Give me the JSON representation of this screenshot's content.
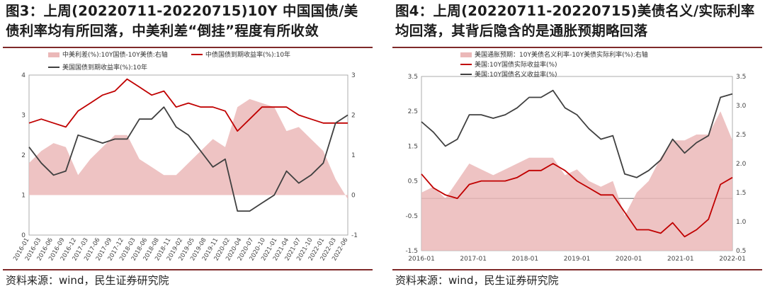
{
  "charts": [
    {
      "title": "图3：上周(20220711-20220715)10Y 中国国债/美债利率均有所回落，中美利差“倒挂”程度有所收敛",
      "source": "资料来源：wind，民生证券研究院"
    },
    {
      "title": "图4：上周(20220711-20220715)美债名义/实际利率均回落，其背后隐含的是通胀预期略回落",
      "source": "资料来源：wind，民生证券研究院"
    }
  ],
  "chart_data": [
    {
      "type": "line",
      "x_tick_labels": [
        "2016-01",
        "2016-03",
        "2016-06",
        "2016-09",
        "2016-12",
        "2017-03",
        "2017-06",
        "2017-09",
        "2017-12",
        "2018-03",
        "2018-06",
        "2018-08",
        "2018-11",
        "2019-02",
        "2019-05",
        "2019-08",
        "2019-11",
        "2020-02",
        "2020-04",
        "2020-07",
        "2020-10",
        "2021-01",
        "2021-04",
        "2021-07",
        "2021-10",
        "2022-01",
        "2022-03",
        "2022-06"
      ],
      "x": [
        "2016-01",
        "2016-04",
        "2016-07",
        "2016-10",
        "2017-01",
        "2017-04",
        "2017-07",
        "2017-10",
        "2018-01",
        "2018-04",
        "2018-07",
        "2018-10",
        "2019-01",
        "2019-04",
        "2019-07",
        "2019-10",
        "2020-01",
        "2020-04",
        "2020-07",
        "2020-10",
        "2021-01",
        "2021-04",
        "2021-07",
        "2021-10",
        "2022-01",
        "2022-04",
        "2022-07"
      ],
      "ylim_left": [
        0,
        4
      ],
      "ylim_right": [
        -1,
        3
      ],
      "yticks_left": [
        0,
        1,
        2,
        3,
        4
      ],
      "yticks_right": [
        -1,
        0,
        1,
        2,
        3
      ],
      "legend_position": "top",
      "colors": {
        "spread": "#ebb8b8",
        "china": "#c00000",
        "us": "#404040"
      },
      "series": [
        {
          "name": "中美利差(%):10Y国债-10Y美债:右轴",
          "axis": "right",
          "style": "area",
          "values": [
            0.8,
            1.1,
            1.3,
            1.2,
            0.5,
            0.9,
            1.2,
            1.5,
            1.5,
            0.9,
            0.7,
            0.5,
            0.5,
            0.8,
            1.1,
            1.4,
            1.2,
            2.2,
            2.4,
            2.3,
            2.2,
            1.6,
            1.7,
            1.4,
            1.1,
            0.4,
            -0.1
          ]
        },
        {
          "name": "中债国债到期收益率(%):10年",
          "axis": "left",
          "style": "line",
          "values": [
            2.8,
            2.9,
            2.8,
            2.7,
            3.1,
            3.3,
            3.5,
            3.6,
            3.9,
            3.7,
            3.5,
            3.6,
            3.2,
            3.3,
            3.2,
            3.2,
            3.1,
            2.6,
            2.9,
            3.2,
            3.2,
            3.2,
            3.0,
            2.9,
            2.8,
            2.8,
            2.8
          ]
        },
        {
          "name": "美国国债到期收益率(%):10年",
          "axis": "left",
          "style": "line",
          "values": [
            2.2,
            1.8,
            1.5,
            1.6,
            2.5,
            2.4,
            2.3,
            2.4,
            2.4,
            2.9,
            2.9,
            3.2,
            2.7,
            2.5,
            2.1,
            1.7,
            1.9,
            0.6,
            0.6,
            0.8,
            1.0,
            1.6,
            1.3,
            1.5,
            1.8,
            2.8,
            3.0
          ]
        }
      ]
    },
    {
      "type": "line",
      "x_tick_labels": [
        "2016-01",
        "2017-01",
        "2018-01",
        "2019-01",
        "2020-01",
        "2021-01",
        "2022-01"
      ],
      "x": [
        "2016-01",
        "2016-04",
        "2016-07",
        "2016-10",
        "2017-01",
        "2017-04",
        "2017-07",
        "2017-10",
        "2018-01",
        "2018-04",
        "2018-07",
        "2018-10",
        "2019-01",
        "2019-04",
        "2019-07",
        "2019-10",
        "2020-01",
        "2020-04",
        "2020-07",
        "2020-10",
        "2021-01",
        "2021-04",
        "2021-07",
        "2021-10",
        "2022-01",
        "2022-04",
        "2022-07"
      ],
      "ylim_left": [
        -1.5,
        3.5
      ],
      "ylim_right": [
        0.5,
        3.5
      ],
      "yticks_left": [
        -1.5,
        -0.5,
        0.5,
        1.5,
        2.5,
        3.5
      ],
      "yticks_right": [
        0.5,
        1.0,
        1.5,
        2.0,
        2.5,
        3.0,
        3.5
      ],
      "zero_line": 0,
      "legend_position": "top-left",
      "colors": {
        "breakeven": "#ebb8b8",
        "real": "#c00000",
        "nominal": "#404040"
      },
      "series": [
        {
          "name": "美国通胀预期：10Y美债名义利率-10Y美债实际利率(%):右轴",
          "axis": "right",
          "style": "area",
          "values": [
            1.5,
            1.6,
            1.4,
            1.7,
            2.0,
            1.9,
            1.8,
            1.9,
            2.0,
            2.1,
            2.1,
            2.1,
            1.8,
            1.9,
            1.7,
            1.6,
            1.7,
            1.1,
            1.5,
            1.7,
            2.1,
            2.4,
            2.4,
            2.5,
            2.5,
            2.9,
            2.4
          ]
        },
        {
          "name": "美国:10Y国债实际收益率(%)",
          "axis": "left",
          "style": "line",
          "values": [
            0.7,
            0.3,
            0.1,
            0.0,
            0.4,
            0.5,
            0.5,
            0.5,
            0.6,
            0.8,
            0.8,
            1.0,
            0.8,
            0.5,
            0.3,
            0.1,
            0.1,
            -0.4,
            -0.9,
            -0.9,
            -1.0,
            -0.7,
            -1.1,
            -0.9,
            -0.6,
            0.4,
            0.6
          ]
        },
        {
          "name": "美国:10Y国债名义收益率(%)",
          "axis": "left",
          "style": "line",
          "values": [
            2.2,
            1.9,
            1.5,
            1.7,
            2.4,
            2.4,
            2.3,
            2.4,
            2.6,
            2.9,
            2.9,
            3.1,
            2.6,
            2.4,
            2.0,
            1.7,
            1.8,
            0.7,
            0.6,
            0.8,
            1.1,
            1.7,
            1.3,
            1.6,
            1.8,
            2.9,
            3.0
          ]
        }
      ]
    }
  ]
}
